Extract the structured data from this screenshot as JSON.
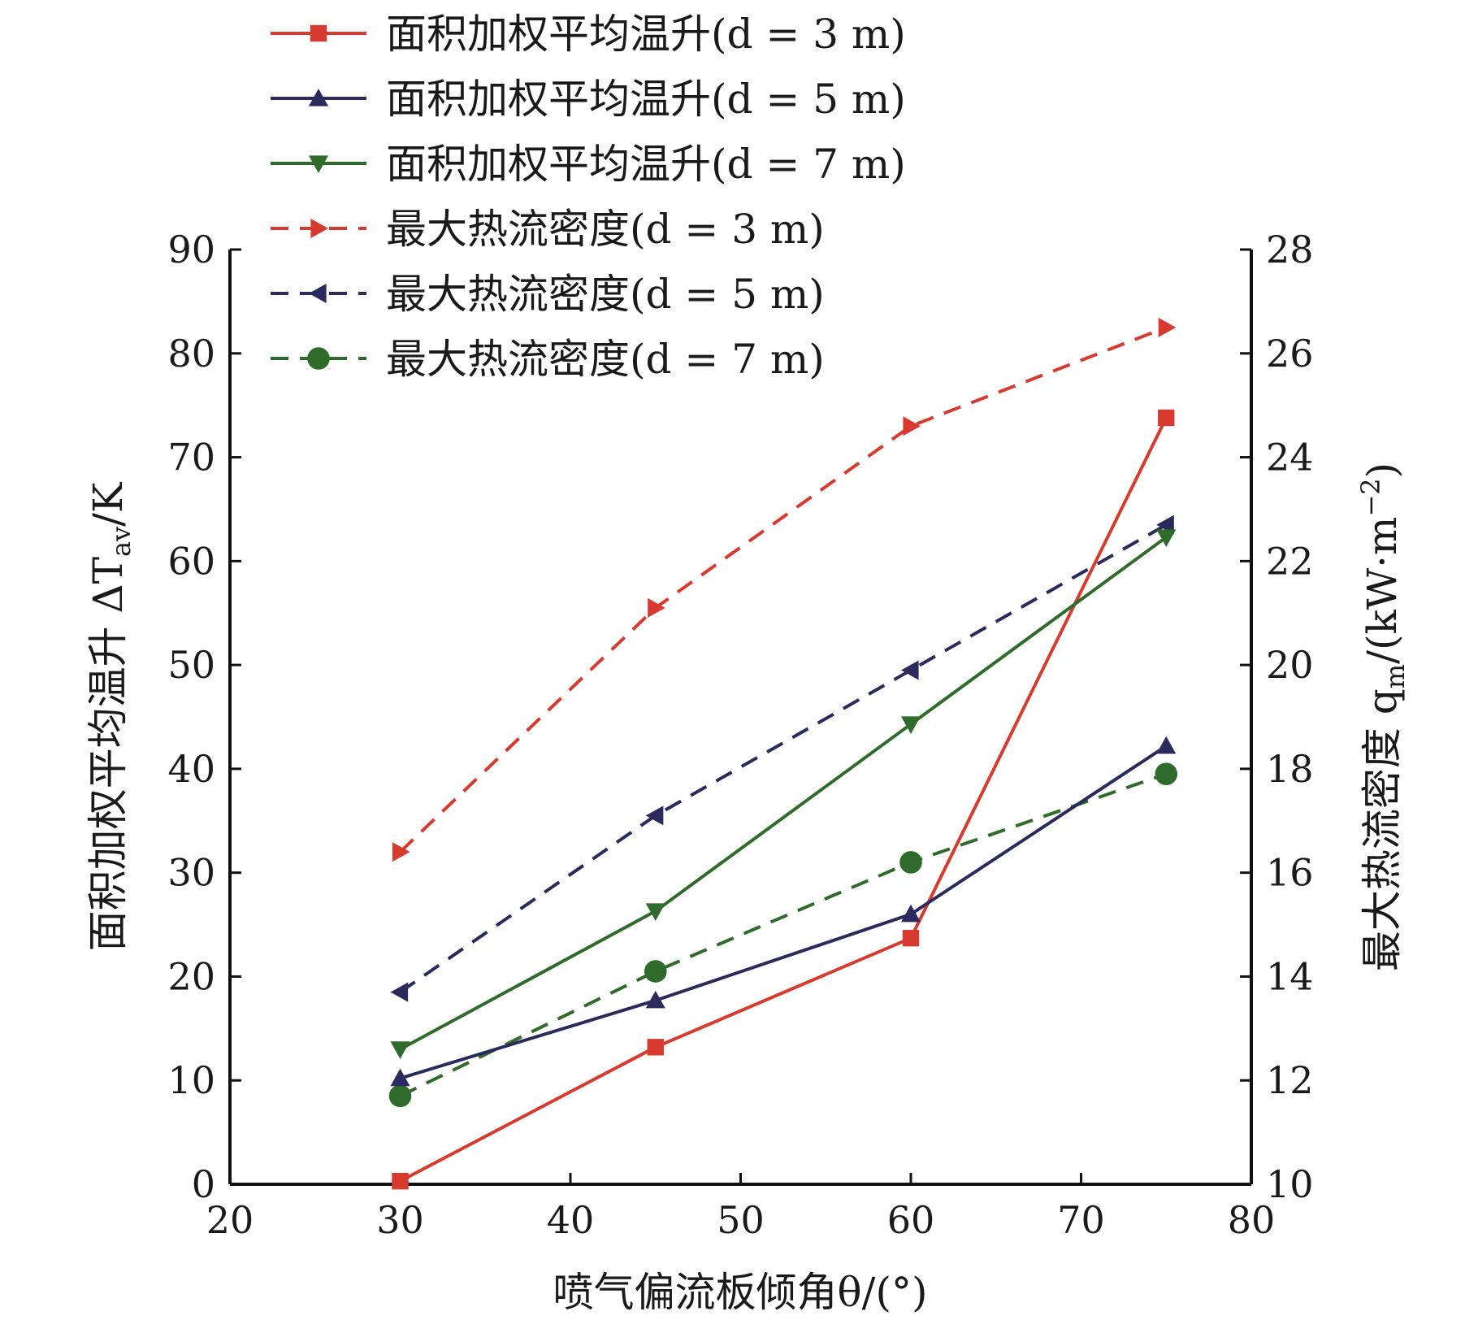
{
  "chart_data": {
    "type": "line",
    "xlabel": "喷气偏流板倾角θ/(°)",
    "ylabel_left": "面积加权平均温升 ΔT",
    "ylabel_left_sub": "av",
    "ylabel_left_unit": "/K",
    "ylabel_right": "最大热流密度 q",
    "ylabel_right_sub": "m",
    "ylabel_right_unit": "/(kW·m",
    "ylabel_right_exp": "−2",
    "ylabel_right_close": ")",
    "xlim": [
      20,
      80
    ],
    "ylim_left": [
      0,
      90
    ],
    "ylim_right": [
      10,
      28
    ],
    "x_ticks": [
      20,
      30,
      40,
      50,
      60,
      70,
      80
    ],
    "y_left_ticks": [
      0,
      10,
      20,
      30,
      40,
      50,
      60,
      70,
      80,
      90
    ],
    "y_right_ticks": [
      10,
      12,
      14,
      16,
      18,
      20,
      22,
      24,
      26,
      28
    ],
    "legend_position": "top",
    "grid": false,
    "series": [
      {
        "name": "面积加权平均温升(d = 3 m)",
        "axis": "left",
        "style": "solid",
        "marker": "square",
        "color": "#d93a2f",
        "x": [
          30,
          45,
          60,
          75
        ],
        "values": [
          0.3,
          13.2,
          23.7,
          73.8
        ]
      },
      {
        "name": "面积加权平均温升(d = 5 m)",
        "axis": "left",
        "style": "solid",
        "marker": "triangle-up",
        "color": "#2a2a5c",
        "x": [
          30,
          45,
          60,
          75
        ],
        "values": [
          10.2,
          17.7,
          26.0,
          42.2
        ]
      },
      {
        "name": "面积加权平均温升(d = 7 m)",
        "axis": "left",
        "style": "solid",
        "marker": "triangle-down",
        "color": "#2f6b2a",
        "x": [
          30,
          45,
          60,
          75
        ],
        "values": [
          13.0,
          26.3,
          44.3,
          62.3
        ]
      },
      {
        "name": "最大热流密度(d = 3 m)",
        "axis": "right",
        "style": "dashed",
        "marker": "triangle-right",
        "color": "#d93a2f",
        "x": [
          30,
          45,
          60,
          75
        ],
        "values": [
          16.4,
          21.1,
          24.6,
          26.5
        ]
      },
      {
        "name": "最大热流密度(d = 5 m)",
        "axis": "right",
        "style": "dashed",
        "marker": "triangle-left",
        "color": "#2a2a5c",
        "x": [
          30,
          45,
          60,
          75
        ],
        "values": [
          13.7,
          17.1,
          19.9,
          22.7
        ]
      },
      {
        "name": "最大热流密度(d = 7 m)",
        "axis": "right",
        "style": "dashed",
        "marker": "circle",
        "color": "#2f6b2a",
        "x": [
          30,
          45,
          60,
          75
        ],
        "values": [
          11.7,
          14.1,
          16.2,
          17.9
        ]
      }
    ]
  }
}
